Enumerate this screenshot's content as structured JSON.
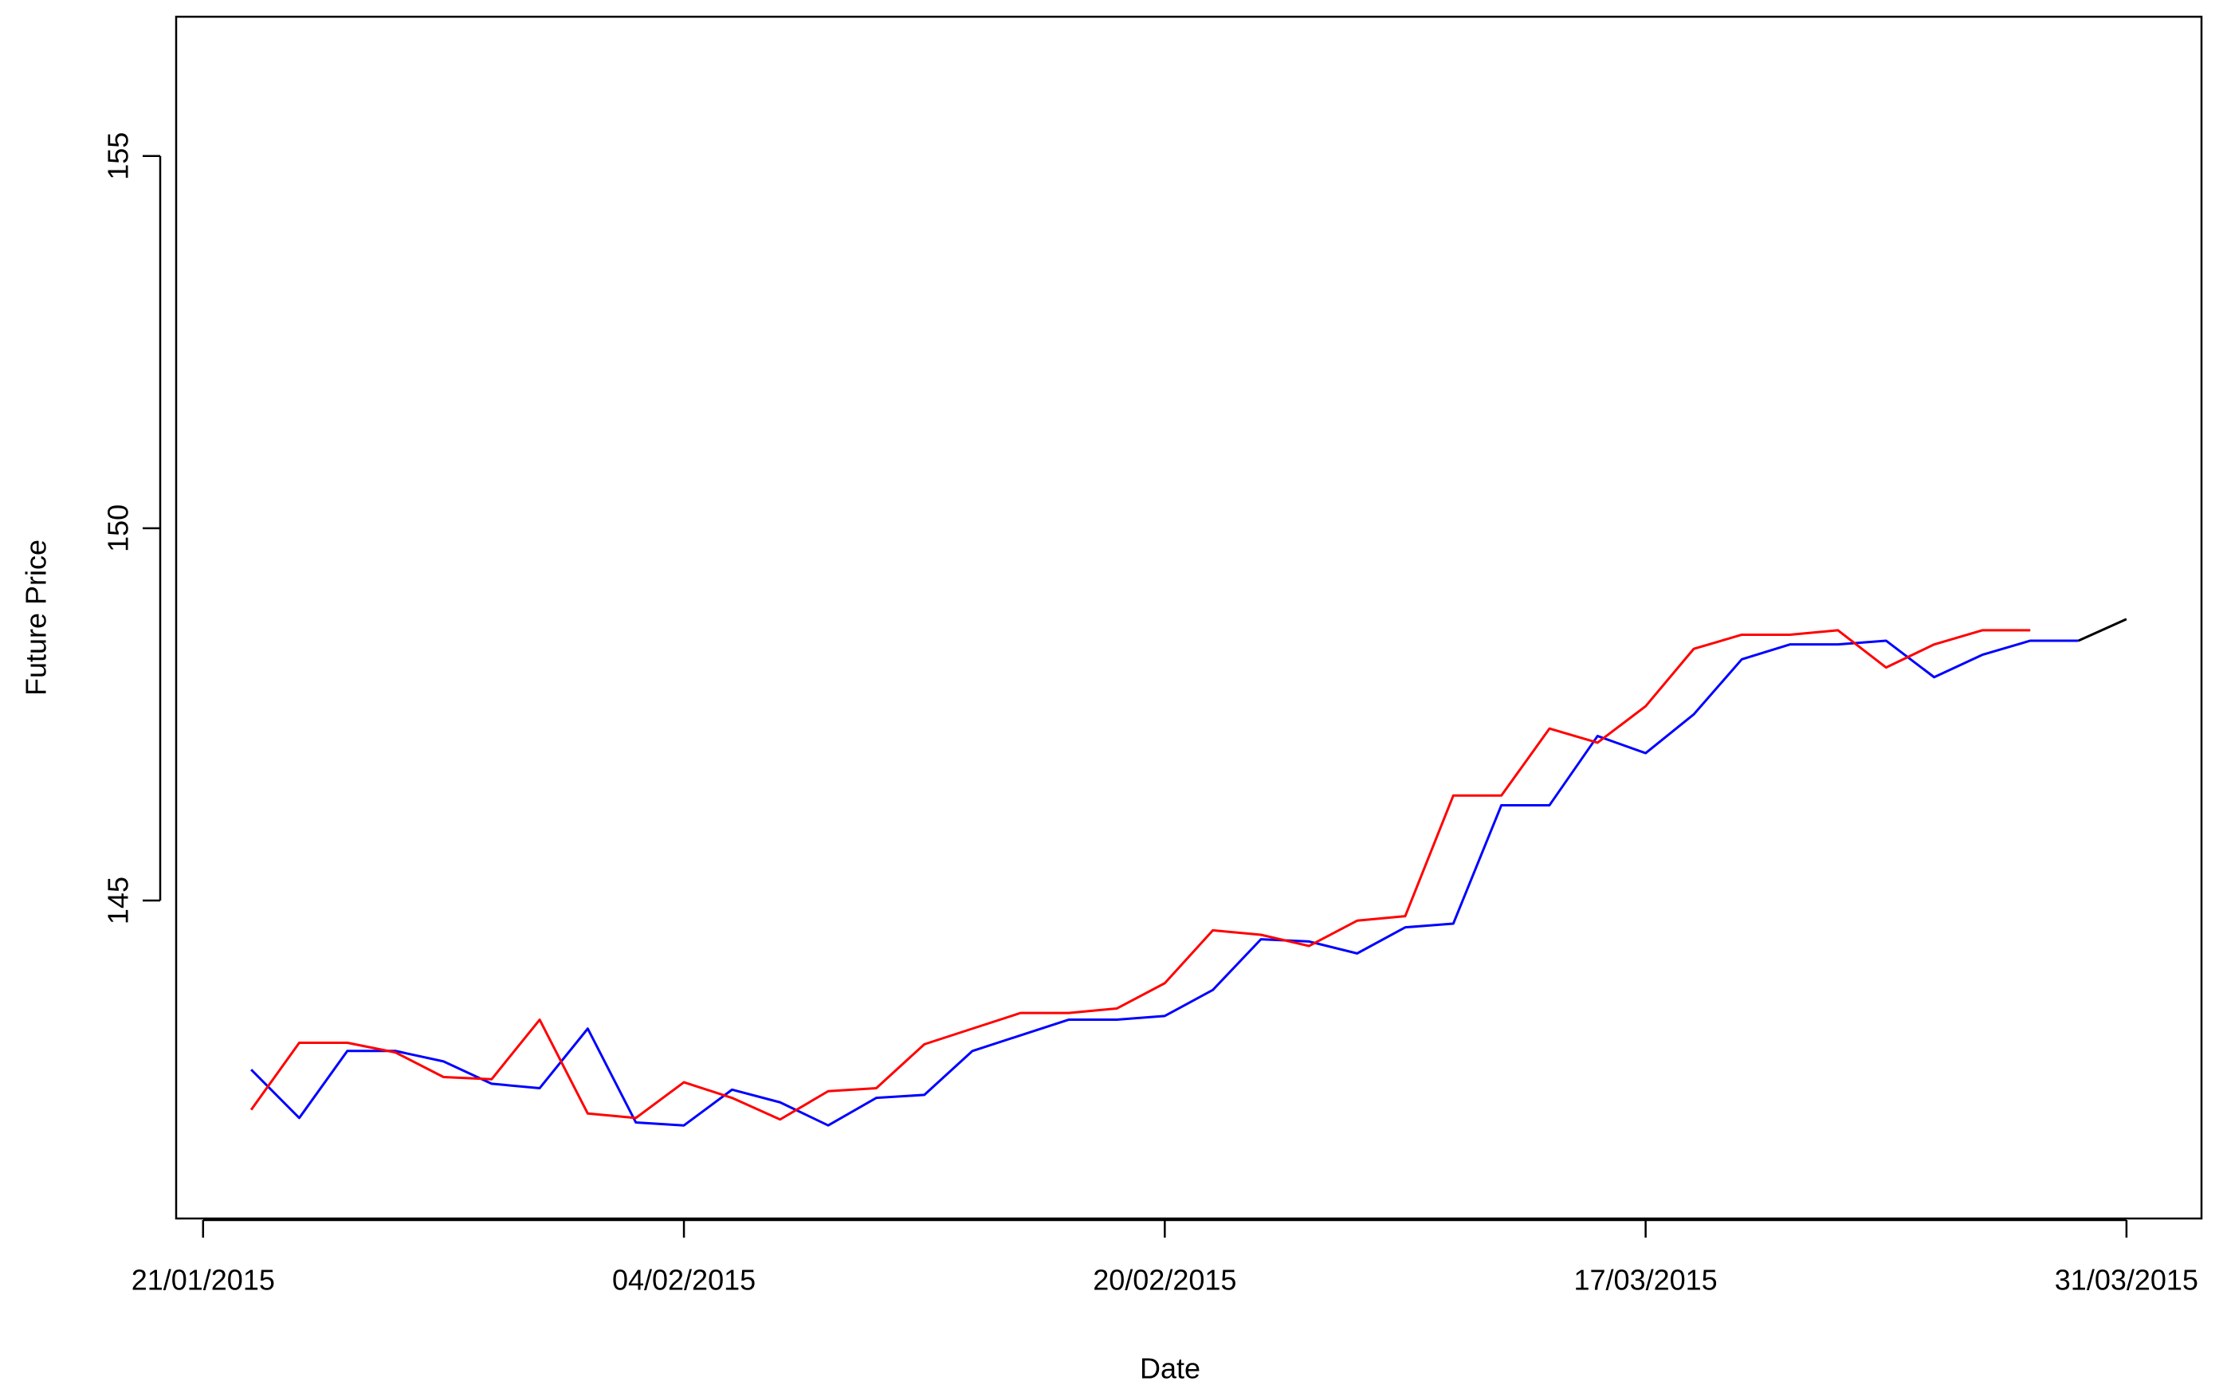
{
  "chart_data": {
    "type": "line",
    "x_label": "Date",
    "y_label": "Future Price",
    "x": [
      1,
      2,
      3,
      4,
      5,
      6,
      7,
      8,
      9,
      10,
      11,
      12,
      13,
      14,
      15,
      16,
      17,
      18,
      19,
      20,
      21,
      22,
      23,
      24,
      25,
      26,
      27,
      28,
      29,
      30,
      31,
      32,
      33,
      34,
      35,
      36,
      37,
      38,
      39,
      40
    ],
    "series": [
      {
        "color": "#000000",
        "values": [
          null,
          null,
          null,
          null,
          null,
          null,
          null,
          null,
          null,
          null,
          null,
          null,
          null,
          null,
          null,
          null,
          null,
          null,
          null,
          null,
          null,
          null,
          null,
          null,
          null,
          null,
          null,
          null,
          null,
          null,
          null,
          null,
          null,
          null,
          null,
          null,
          null,
          null,
          148.49,
          148.78
        ]
      },
      {
        "color": "#0000ff",
        "values": [
          142.73,
          142.08,
          142.98,
          142.98,
          142.84,
          142.54,
          142.48,
          143.28,
          142.02,
          141.98,
          142.46,
          142.29,
          141.98,
          142.35,
          142.39,
          142.98,
          143.19,
          143.4,
          143.4,
          143.45,
          143.8,
          144.48,
          144.45,
          144.29,
          144.64,
          144.69,
          146.28,
          146.28,
          147.21,
          146.98,
          147.5,
          148.24,
          148.44,
          148.44,
          148.49,
          148.0,
          148.3,
          148.49,
          148.49,
          null
        ]
      },
      {
        "color": "#ff0000",
        "values": [
          142.19,
          143.09,
          143.09,
          142.96,
          142.63,
          142.6,
          143.4,
          142.14,
          142.08,
          142.56,
          142.35,
          142.06,
          142.44,
          142.48,
          143.07,
          143.28,
          143.49,
          143.49,
          143.55,
          143.89,
          144.6,
          144.54,
          144.39,
          144.73,
          144.79,
          146.41,
          146.41,
          147.31,
          147.12,
          147.61,
          148.38,
          148.57,
          148.57,
          148.63,
          148.13,
          148.44,
          148.63,
          148.63,
          null,
          null
        ]
      }
    ],
    "xlim": [
      -0.56,
      41.56
    ],
    "xticks": [
      {
        "value": 0,
        "label": "21/01/2015"
      },
      {
        "value": 10,
        "label": "04/02/2015"
      },
      {
        "value": 20,
        "label": "20/02/2015"
      },
      {
        "value": 30,
        "label": "17/03/2015"
      },
      {
        "value": 40,
        "label": "31/03/2015"
      }
    ],
    "ylim": [
      140.73,
      156.87
    ],
    "yticks": [
      145,
      150,
      155
    ],
    "grid": false
  }
}
